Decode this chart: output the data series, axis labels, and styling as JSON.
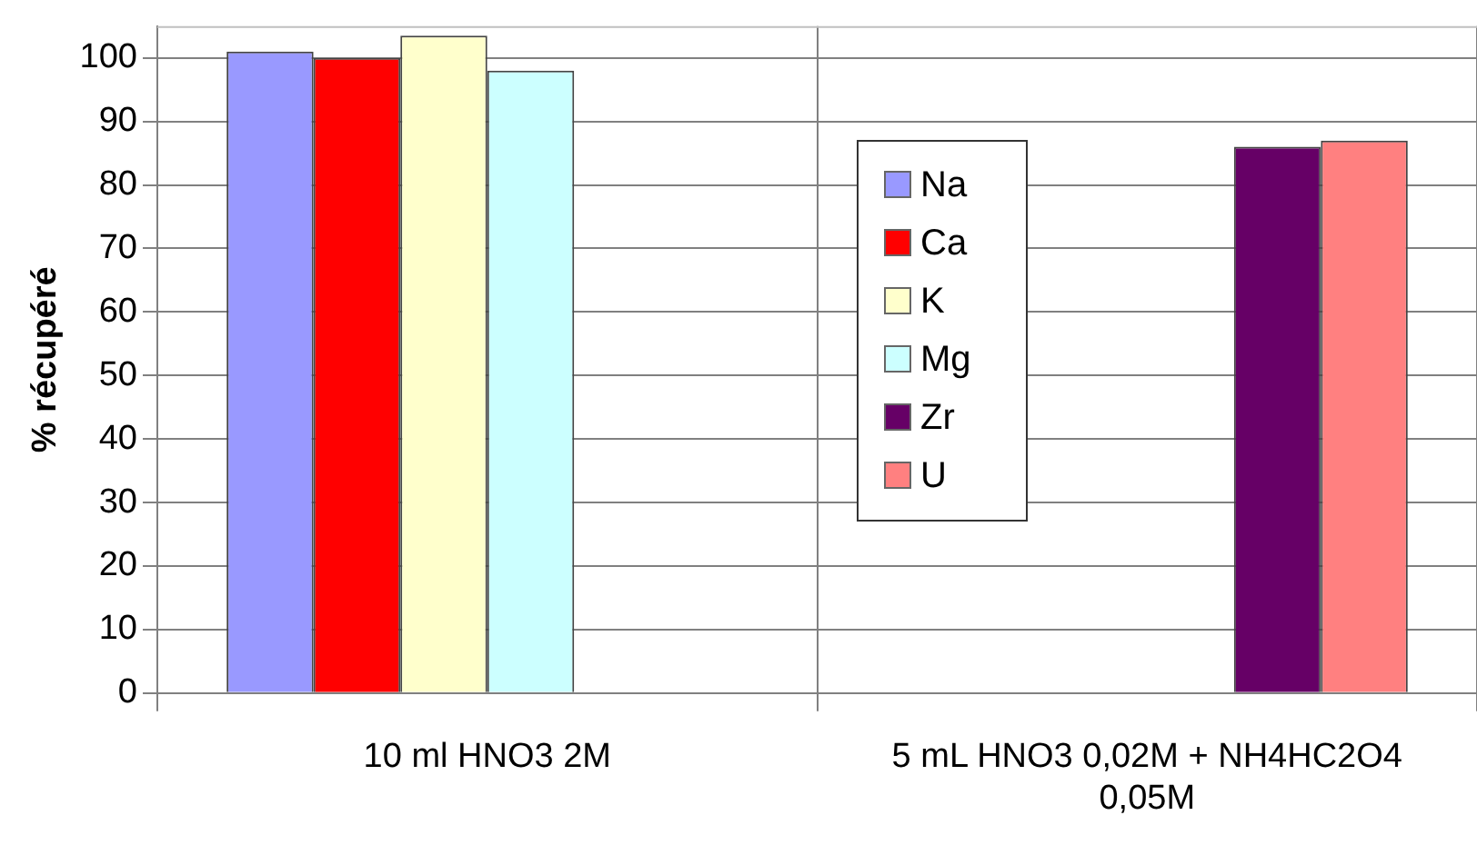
{
  "chart_data": {
    "type": "bar",
    "ylabel": "% récupéré",
    "categories": [
      "10 ml HNO3 2M",
      "5 mL HNO3 0,02M + NH4HC2O4 0,05M"
    ],
    "series": [
      {
        "name": "Na",
        "color": "#9999ff",
        "values": [
          101,
          null
        ]
      },
      {
        "name": "Ca",
        "color": "#ff0000",
        "values": [
          100,
          null
        ]
      },
      {
        "name": "K",
        "color": "#ffffcc",
        "values": [
          103.5,
          null
        ]
      },
      {
        "name": "Mg",
        "color": "#ccffff",
        "values": [
          98,
          null
        ]
      },
      {
        "name": "Zr",
        "color": "#660066",
        "values": [
          null,
          86
        ]
      },
      {
        "name": "U",
        "color": "#ff8080",
        "values": [
          null,
          87
        ]
      }
    ],
    "ylim": [
      0,
      105
    ],
    "yticks": [
      0,
      10,
      20,
      30,
      40,
      50,
      60,
      70,
      80,
      90,
      100
    ],
    "grid": "y",
    "legend": "center"
  }
}
